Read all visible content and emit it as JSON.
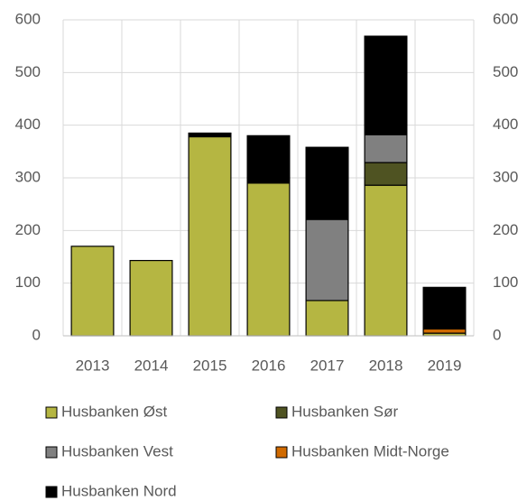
{
  "chart_data": {
    "type": "stacked_bar",
    "categories": [
      "2013",
      "2014",
      "2015",
      "2016",
      "2017",
      "2018",
      "2019"
    ],
    "series": [
      {
        "name": "Husbanken Øst",
        "color": "#b5b642",
        "values": [
          170,
          143,
          378,
          290,
          67,
          286,
          5
        ]
      },
      {
        "name": "Husbanken Sør",
        "color": "#4f5322",
        "values": [
          0,
          0,
          0,
          0,
          0,
          43,
          0
        ]
      },
      {
        "name": "Husbanken Vest",
        "color": "#808080",
        "values": [
          0,
          0,
          0,
          0,
          154,
          53,
          0
        ]
      },
      {
        "name": "Husbanken Midt-Norge",
        "color": "#d06a00",
        "values": [
          0,
          0,
          0,
          0,
          0,
          0,
          8
        ]
      },
      {
        "name": "Husbanken Nord",
        "color": "#000000",
        "values": [
          0,
          0,
          7,
          90,
          137,
          187,
          79
        ]
      }
    ],
    "ylim": [
      0,
      600
    ],
    "yticks": [
      0,
      100,
      200,
      300,
      400,
      500,
      600
    ],
    "y2lim": [
      0,
      600
    ],
    "y2ticks": [
      0,
      100,
      200,
      300,
      400,
      500,
      600
    ],
    "grid": true
  }
}
